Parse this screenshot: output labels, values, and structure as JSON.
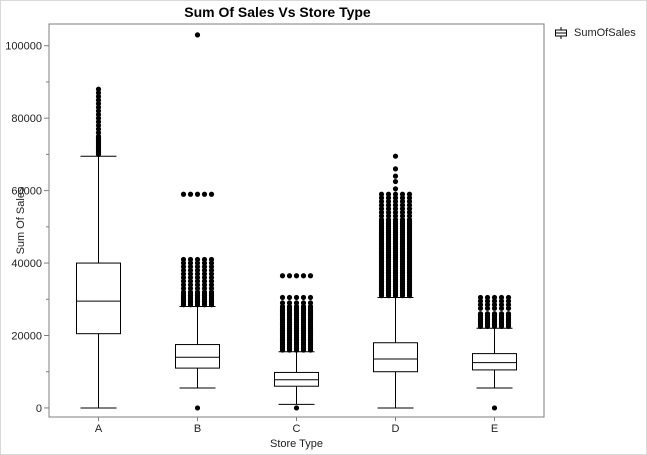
{
  "chart_data": {
    "type": "box",
    "title": "Sum Of Sales Vs Store Type",
    "xlabel": "Store Type",
    "ylabel": "Sum Of Sales",
    "ylim": [
      -2500,
      106000
    ],
    "yticks": [
      0,
      20000,
      40000,
      60000,
      80000,
      100000
    ],
    "yticklabels": [
      "0",
      "20000",
      "40000",
      "60000",
      "80000",
      "100000"
    ],
    "grid": false,
    "legend": {
      "position": "right",
      "entries": [
        "SumOfSales"
      ]
    },
    "categories": [
      "A",
      "B",
      "C",
      "D",
      "E"
    ],
    "boxes": [
      {
        "category": "A",
        "whisker_low": 0,
        "q1": 20500,
        "median": 29500,
        "q3": 40000,
        "whisker_high": 69500,
        "outliers": [
          70000,
          70500,
          71000,
          71500,
          72000,
          72500,
          73000,
          73500,
          74000,
          74500,
          75000,
          76000,
          77000,
          78000,
          79000,
          80000,
          81000,
          82000,
          83000,
          84000,
          85000,
          86000,
          87000,
          88000
        ]
      },
      {
        "category": "B",
        "whisker_low": 5500,
        "q1": 11000,
        "median": 14000,
        "q3": 17500,
        "whisker_high": 28000,
        "outliers": [
          0,
          28500,
          29000,
          29500,
          30000,
          30500,
          31000,
          31500,
          32000,
          33000,
          34000,
          35000,
          36000,
          37000,
          38000,
          39000,
          40000,
          41000,
          59000,
          103000
        ]
      },
      {
        "category": "C",
        "whisker_low": 1000,
        "q1": 6000,
        "median": 7800,
        "q3": 9800,
        "whisker_high": 15500,
        "outliers": [
          0,
          16000,
          16500,
          17000,
          17500,
          18000,
          18500,
          19000,
          19500,
          20000,
          20500,
          21000,
          21500,
          22000,
          22500,
          23000,
          23500,
          24000,
          24500,
          25000,
          25500,
          26000,
          26500,
          27000,
          27500,
          28000,
          29000,
          30500,
          36500
        ]
      },
      {
        "category": "D",
        "whisker_low": 0,
        "q1": 10000,
        "median": 13500,
        "q3": 18000,
        "whisker_high": 30500,
        "outliers": [
          31000,
          31500,
          32000,
          32500,
          33000,
          33500,
          34000,
          34500,
          35000,
          35500,
          36000,
          36500,
          37000,
          37500,
          38000,
          38500,
          39000,
          39500,
          40000,
          40500,
          41000,
          41500,
          42000,
          42500,
          43000,
          43500,
          44000,
          44500,
          45000,
          45500,
          46000,
          46500,
          47000,
          47500,
          48000,
          48500,
          49000,
          49500,
          50000,
          50500,
          51000,
          51500,
          52000,
          53000,
          54000,
          55000,
          56000,
          57000,
          58000,
          59000,
          60500,
          62500,
          64000,
          66000,
          69500
        ]
      },
      {
        "category": "E",
        "whisker_low": 5500,
        "q1": 10500,
        "median": 12500,
        "q3": 15000,
        "whisker_high": 22000,
        "outliers": [
          0,
          22500,
          23000,
          23500,
          24000,
          24500,
          25000,
          25500,
          26000,
          27500,
          28500,
          29500,
          30500
        ]
      }
    ],
    "colors": {
      "box_stroke": "#000000",
      "box_fill": "#ffffff",
      "outlier": "#000000",
      "axis": "#7f7f7f"
    }
  }
}
